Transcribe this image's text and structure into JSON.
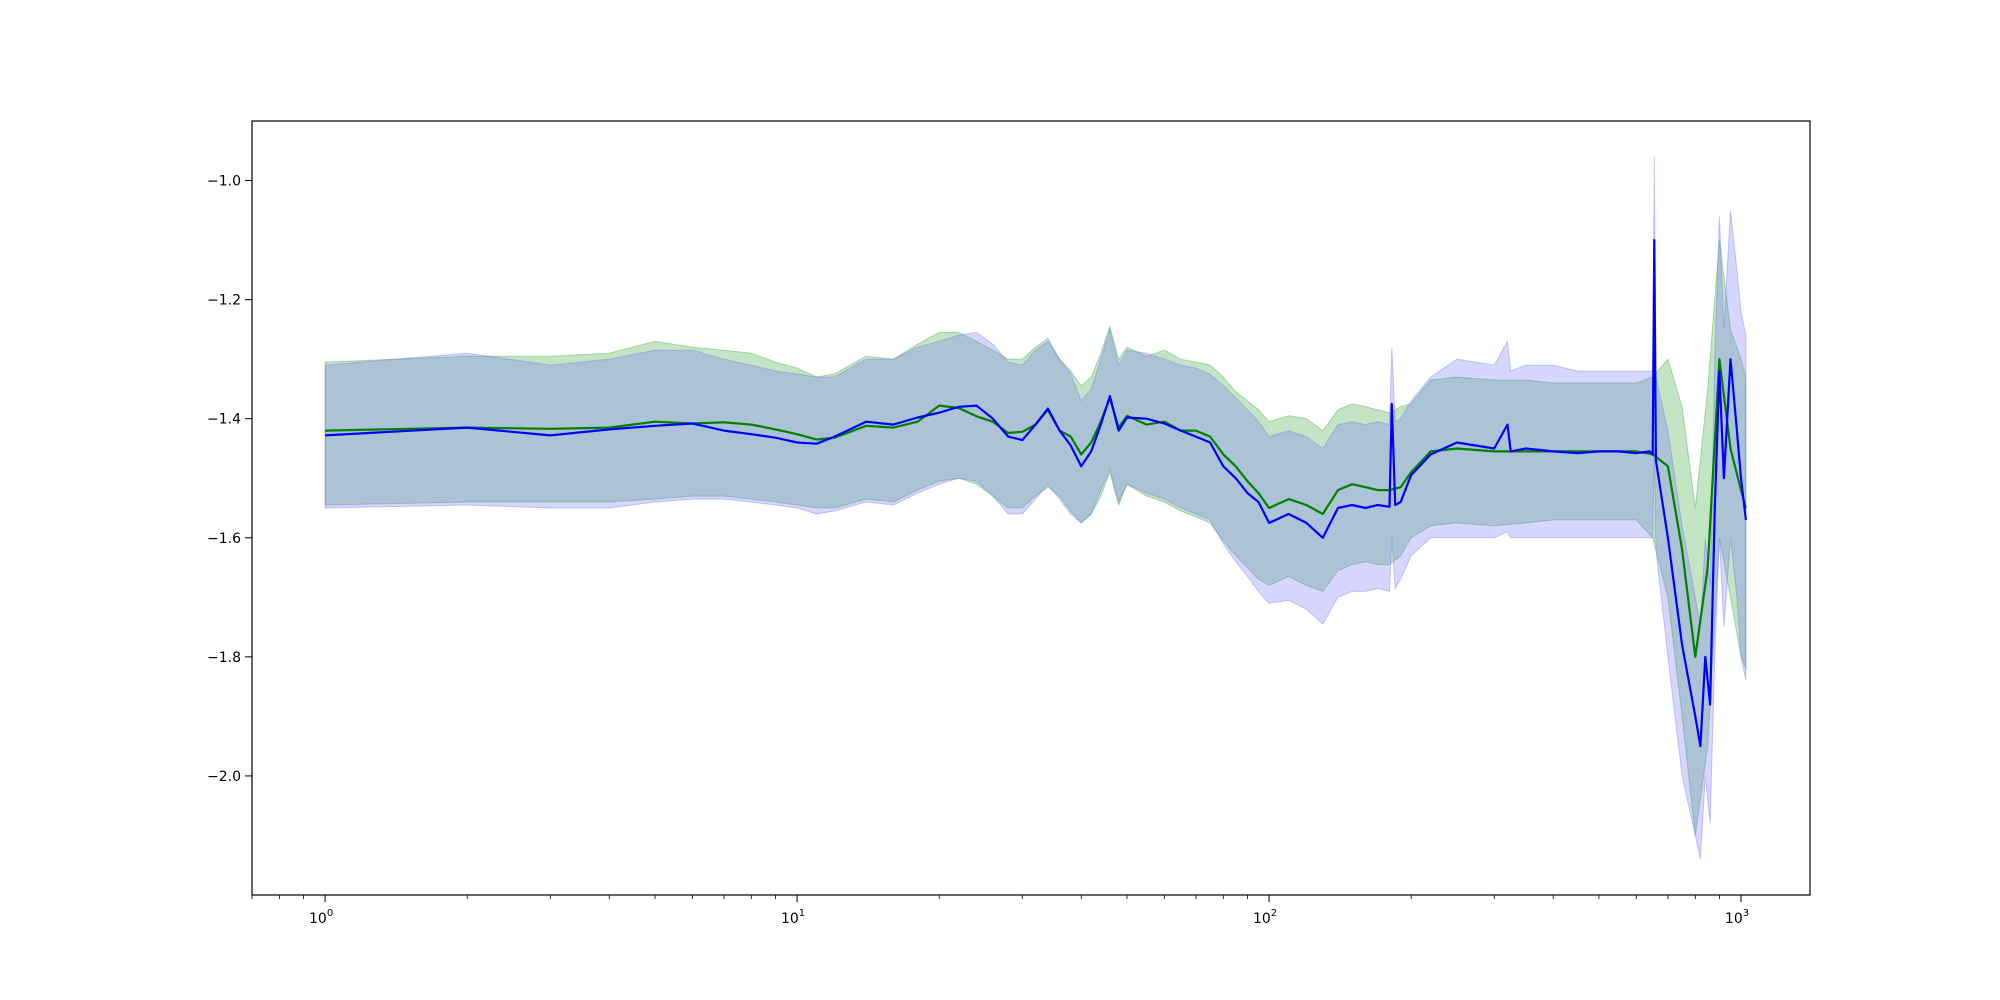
{
  "chart_data": {
    "type": "line",
    "title": "",
    "xlabel": "",
    "ylabel": "",
    "xscale": "log",
    "xlim": [
      0.7,
      1400
    ],
    "ylim": [
      -2.2,
      -0.9
    ],
    "grid": false,
    "legend": "none",
    "x_ticks": [
      {
        "value": 1,
        "base": "10",
        "exp": "0"
      },
      {
        "value": 10,
        "base": "10",
        "exp": "1"
      },
      {
        "value": 100,
        "base": "10",
        "exp": "2"
      },
      {
        "value": 1000,
        "base": "10",
        "exp": "3"
      }
    ],
    "y_ticks": [
      {
        "value": -1.0,
        "label": "−1.0"
      },
      {
        "value": -1.2,
        "label": "−1.2"
      },
      {
        "value": -1.4,
        "label": "−1.4"
      },
      {
        "value": -1.6,
        "label": "−1.6"
      },
      {
        "value": -1.8,
        "label": "−1.8"
      },
      {
        "value": -2.0,
        "label": "−2.0"
      }
    ],
    "series": [
      {
        "color": "#008000",
        "band_color": "#2ca02c",
        "x": [
          1,
          2,
          3,
          4,
          5,
          6,
          7,
          8,
          9,
          10,
          11,
          12,
          14,
          16,
          18,
          20,
          22,
          24,
          26,
          28,
          30,
          32,
          34,
          36,
          38,
          40,
          42,
          44,
          46,
          48,
          50,
          55,
          60,
          65,
          70,
          75,
          80,
          85,
          90,
          95,
          100,
          110,
          120,
          130,
          140,
          150,
          160,
          170,
          180,
          190,
          200,
          220,
          250,
          300,
          350,
          400,
          450,
          500,
          550,
          600,
          650,
          700,
          750,
          800,
          850,
          900,
          950,
          1000,
          1024
        ],
        "y": [
          -1.42,
          -1.415,
          -1.417,
          -1.415,
          -1.405,
          -1.408,
          -1.406,
          -1.41,
          -1.418,
          -1.426,
          -1.435,
          -1.432,
          -1.412,
          -1.415,
          -1.405,
          -1.378,
          -1.382,
          -1.396,
          -1.405,
          -1.424,
          -1.422,
          -1.41,
          -1.385,
          -1.42,
          -1.43,
          -1.46,
          -1.44,
          -1.405,
          -1.365,
          -1.415,
          -1.395,
          -1.41,
          -1.405,
          -1.42,
          -1.42,
          -1.43,
          -1.46,
          -1.48,
          -1.505,
          -1.525,
          -1.55,
          -1.535,
          -1.545,
          -1.56,
          -1.52,
          -1.51,
          -1.515,
          -1.52,
          -1.52,
          -1.515,
          -1.49,
          -1.455,
          -1.45,
          -1.455,
          -1.455,
          -1.455,
          -1.455,
          -1.455,
          -1.455,
          -1.455,
          -1.46,
          -1.48,
          -1.62,
          -1.8,
          -1.65,
          -1.3,
          -1.45,
          -1.52,
          -1.55
        ],
        "lower": [
          -1.545,
          -1.54,
          -1.54,
          -1.54,
          -1.535,
          -1.53,
          -1.53,
          -1.535,
          -1.54,
          -1.545,
          -1.55,
          -1.55,
          -1.535,
          -1.54,
          -1.52,
          -1.505,
          -1.5,
          -1.51,
          -1.53,
          -1.55,
          -1.55,
          -1.53,
          -1.515,
          -1.53,
          -1.555,
          -1.575,
          -1.56,
          -1.53,
          -1.49,
          -1.545,
          -1.51,
          -1.53,
          -1.54,
          -1.555,
          -1.565,
          -1.575,
          -1.605,
          -1.63,
          -1.65,
          -1.67,
          -1.68,
          -1.665,
          -1.68,
          -1.69,
          -1.655,
          -1.645,
          -1.64,
          -1.645,
          -1.645,
          -1.63,
          -1.6,
          -1.58,
          -1.575,
          -1.58,
          -1.575,
          -1.57,
          -1.57,
          -1.57,
          -1.57,
          -1.57,
          -1.6,
          -1.7,
          -1.9,
          -2.1,
          -1.95,
          -1.6,
          -1.7,
          -1.8,
          -1.82
        ],
        "upper": [
          -1.305,
          -1.295,
          -1.295,
          -1.29,
          -1.27,
          -1.28,
          -1.285,
          -1.29,
          -1.305,
          -1.315,
          -1.33,
          -1.325,
          -1.295,
          -1.3,
          -1.275,
          -1.255,
          -1.255,
          -1.27,
          -1.285,
          -1.3,
          -1.3,
          -1.28,
          -1.265,
          -1.3,
          -1.32,
          -1.345,
          -1.33,
          -1.29,
          -1.245,
          -1.3,
          -1.28,
          -1.295,
          -1.285,
          -1.3,
          -1.305,
          -1.31,
          -1.33,
          -1.355,
          -1.37,
          -1.385,
          -1.405,
          -1.395,
          -1.4,
          -1.42,
          -1.385,
          -1.375,
          -1.38,
          -1.385,
          -1.39,
          -1.38,
          -1.375,
          -1.335,
          -1.33,
          -1.335,
          -1.335,
          -1.34,
          -1.34,
          -1.34,
          -1.34,
          -1.34,
          -1.33,
          -1.3,
          -1.38,
          -1.55,
          -1.35,
          -1.1,
          -1.25,
          -1.3,
          -1.33
        ]
      },
      {
        "color": "#0000ff",
        "band_color": "#6a6aff",
        "x": [
          1,
          2,
          3,
          4,
          5,
          6,
          7,
          8,
          9,
          10,
          11,
          12,
          14,
          16,
          18,
          20,
          22,
          24,
          26,
          28,
          30,
          32,
          34,
          36,
          38,
          40,
          42,
          44,
          46,
          48,
          50,
          55,
          60,
          65,
          70,
          75,
          80,
          85,
          90,
          95,
          100,
          110,
          120,
          130,
          140,
          150,
          160,
          170,
          180,
          182,
          185,
          190,
          200,
          220,
          250,
          300,
          320,
          325,
          350,
          400,
          450,
          500,
          550,
          600,
          640,
          650,
          655,
          660,
          700,
          750,
          800,
          820,
          840,
          860,
          880,
          900,
          920,
          950,
          980,
          1000,
          1024
        ],
        "y": [
          -1.428,
          -1.415,
          -1.428,
          -1.418,
          -1.412,
          -1.408,
          -1.42,
          -1.426,
          -1.432,
          -1.44,
          -1.442,
          -1.43,
          -1.405,
          -1.41,
          -1.398,
          -1.39,
          -1.38,
          -1.378,
          -1.4,
          -1.43,
          -1.436,
          -1.41,
          -1.383,
          -1.42,
          -1.445,
          -1.48,
          -1.455,
          -1.41,
          -1.362,
          -1.42,
          -1.398,
          -1.4,
          -1.408,
          -1.42,
          -1.43,
          -1.44,
          -1.48,
          -1.5,
          -1.525,
          -1.54,
          -1.575,
          -1.56,
          -1.575,
          -1.6,
          -1.55,
          -1.545,
          -1.55,
          -1.545,
          -1.548,
          -1.375,
          -1.545,
          -1.54,
          -1.495,
          -1.46,
          -1.44,
          -1.45,
          -1.41,
          -1.455,
          -1.45,
          -1.455,
          -1.458,
          -1.455,
          -1.455,
          -1.458,
          -1.455,
          -1.46,
          -1.1,
          -1.47,
          -1.6,
          -1.78,
          -1.9,
          -1.95,
          -1.8,
          -1.88,
          -1.55,
          -1.32,
          -1.5,
          -1.3,
          -1.42,
          -1.5,
          -1.57
        ],
        "lower": [
          -1.55,
          -1.545,
          -1.55,
          -1.55,
          -1.54,
          -1.535,
          -1.535,
          -1.54,
          -1.545,
          -1.55,
          -1.56,
          -1.555,
          -1.54,
          -1.545,
          -1.525,
          -1.51,
          -1.5,
          -1.505,
          -1.53,
          -1.56,
          -1.56,
          -1.535,
          -1.51,
          -1.535,
          -1.56,
          -1.575,
          -1.56,
          -1.52,
          -1.485,
          -1.54,
          -1.51,
          -1.525,
          -1.535,
          -1.55,
          -1.56,
          -1.57,
          -1.61,
          -1.64,
          -1.665,
          -1.69,
          -1.71,
          -1.705,
          -1.72,
          -1.745,
          -1.7,
          -1.69,
          -1.69,
          -1.685,
          -1.69,
          -1.6,
          -1.685,
          -1.67,
          -1.63,
          -1.6,
          -1.6,
          -1.6,
          -1.59,
          -1.6,
          -1.6,
          -1.6,
          -1.6,
          -1.6,
          -1.6,
          -1.6,
          -1.6,
          -1.6,
          -1.45,
          -1.62,
          -1.8,
          -2.0,
          -2.1,
          -2.14,
          -2.0,
          -2.08,
          -1.8,
          -1.6,
          -1.75,
          -1.6,
          -1.7,
          -1.8,
          -1.84
        ],
        "upper": [
          -1.31,
          -1.29,
          -1.31,
          -1.3,
          -1.285,
          -1.285,
          -1.3,
          -1.31,
          -1.32,
          -1.325,
          -1.33,
          -1.33,
          -1.3,
          -1.3,
          -1.28,
          -1.27,
          -1.26,
          -1.255,
          -1.275,
          -1.305,
          -1.31,
          -1.285,
          -1.27,
          -1.3,
          -1.325,
          -1.37,
          -1.35,
          -1.3,
          -1.25,
          -1.31,
          -1.285,
          -1.29,
          -1.3,
          -1.31,
          -1.315,
          -1.325,
          -1.345,
          -1.365,
          -1.385,
          -1.405,
          -1.43,
          -1.42,
          -1.43,
          -1.45,
          -1.41,
          -1.405,
          -1.41,
          -1.405,
          -1.41,
          -1.28,
          -1.405,
          -1.4,
          -1.37,
          -1.33,
          -1.3,
          -1.31,
          -1.27,
          -1.32,
          -1.31,
          -1.31,
          -1.32,
          -1.32,
          -1.32,
          -1.32,
          -1.32,
          -1.32,
          -0.96,
          -1.33,
          -1.42,
          -1.58,
          -1.7,
          -1.75,
          -1.6,
          -1.68,
          -1.3,
          -1.06,
          -1.25,
          -1.05,
          -1.15,
          -1.22,
          -1.26
        ]
      }
    ]
  }
}
